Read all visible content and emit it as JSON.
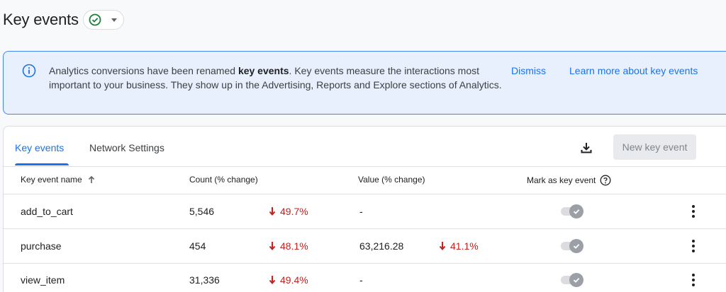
{
  "header": {
    "title": "Key events",
    "status_icon": "check-circle-icon",
    "status_color": "#188038"
  },
  "banner": {
    "icon": "info-icon",
    "text_before": "Analytics conversions have been renamed ",
    "text_bold": "key events",
    "text_after": ". Key events measure the interactions most important to your business. They show up in the Advertising, Reports and Explore sections of Analytics.",
    "dismiss_label": "Dismiss",
    "learn_more_label": "Learn more about key events"
  },
  "tabs": [
    {
      "label": "Key events",
      "active": true
    },
    {
      "label": "Network Settings",
      "active": false
    }
  ],
  "toolbar": {
    "download_icon": "download-icon",
    "new_button_label": "New key event"
  },
  "table": {
    "columns": {
      "name": "Key event name",
      "count": "Count (% change)",
      "value": "Value (% change)",
      "mark": "Mark as key event"
    },
    "rows": [
      {
        "name": "add_to_cart",
        "count": "5,546",
        "count_change": "49.7%",
        "value": "-",
        "value_change": ""
      },
      {
        "name": "purchase",
        "count": "454",
        "count_change": "48.1%",
        "value": "63,216.28",
        "value_change": "41.1%"
      },
      {
        "name": "view_item",
        "count": "31,336",
        "count_change": "49.4%",
        "value": "-",
        "value_change": ""
      }
    ]
  },
  "colors": {
    "accent": "#1a73e8",
    "negative": "#c5221f"
  }
}
